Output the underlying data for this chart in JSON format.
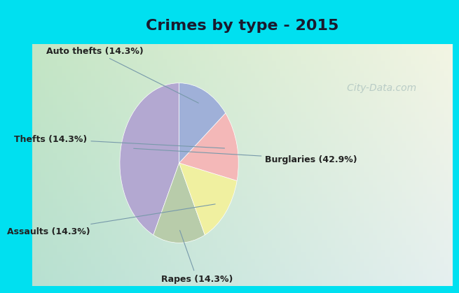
{
  "title": "Crimes by type - 2015",
  "title_fontsize": 16,
  "title_fontweight": "bold",
  "slices": [
    {
      "label": "Burglaries (42.9%)",
      "value": 42.9,
      "color": "#b3a8d1"
    },
    {
      "label": "Rapes (14.3%)",
      "value": 14.3,
      "color": "#b8ccaa"
    },
    {
      "label": "Assaults (14.3%)",
      "value": 14.3,
      "color": "#f0f0a0"
    },
    {
      "label": "Thefts (14.3%)",
      "value": 14.3,
      "color": "#f4b8b8"
    },
    {
      "label": "Auto thefts (14.3%)",
      "value": 14.3,
      "color": "#9fb0d8"
    }
  ],
  "label_fontsize": 9,
  "bg_top_color": "#00e0f0",
  "watermark": "   City-Data.com",
  "startangle": 90
}
